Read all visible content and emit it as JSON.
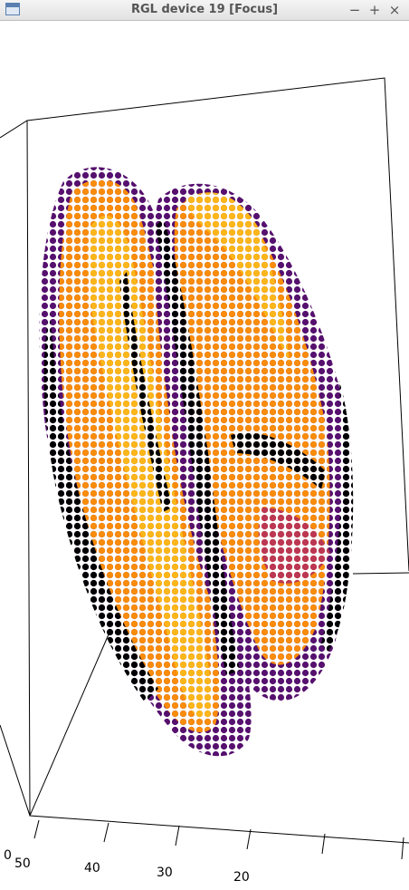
{
  "window": {
    "title": "RGL device 19 [Focus]"
  },
  "controls": {
    "minimize": "−",
    "maximize": "+",
    "close": "×"
  },
  "axis": {
    "tick_labels": [
      "0",
      "50",
      "40",
      "30",
      "20"
    ]
  },
  "colors": {
    "c1": "#000004",
    "c2": "#2a0b52",
    "c3": "#56106e",
    "c4": "#8a2267",
    "c5": "#bb3754",
    "c6": "#e35932",
    "c7": "#f98c0a",
    "c8": "#fbb61a"
  }
}
